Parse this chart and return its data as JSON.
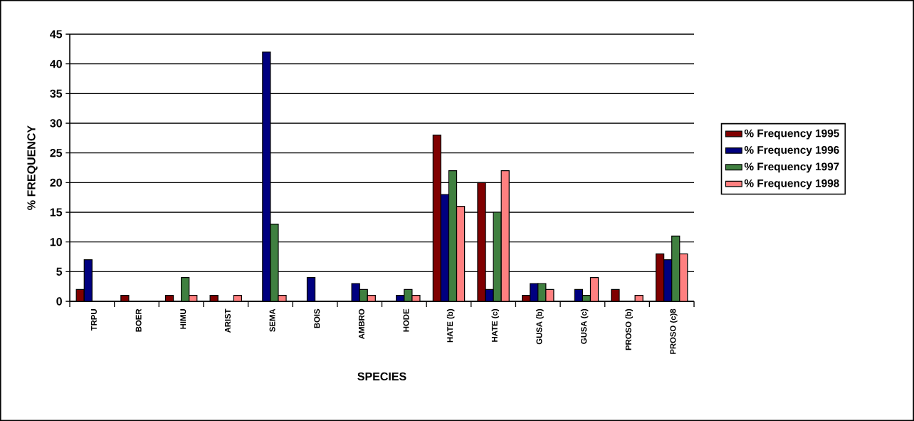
{
  "chart_data": {
    "type": "bar",
    "xlabel": "SPECIES",
    "ylabel": "% FREQUENCY",
    "categories": [
      "TRPU",
      "BOER",
      "HIMU",
      "ARIST",
      "SEMA",
      "BOIS",
      "AMBRO",
      "HODE",
      "HATE (b)",
      "HATE (c)",
      "GUSA (b)",
      "GUSA (c)",
      "PROSO (b)",
      "PROSO (c)8"
    ],
    "series": [
      {
        "name": "% Frequency 1995",
        "color": "#800000",
        "values": [
          2,
          1,
          1,
          1,
          0,
          0,
          0,
          0,
          28,
          20,
          1,
          0,
          2,
          8
        ]
      },
      {
        "name": "% Frequency 1996",
        "color": "#000080",
        "values": [
          7,
          0,
          0,
          0,
          42,
          4,
          3,
          1,
          18,
          2,
          3,
          2,
          0,
          7
        ]
      },
      {
        "name": "% Frequency 1997",
        "color": "#408040",
        "values": [
          0,
          0,
          4,
          0,
          13,
          0,
          2,
          2,
          22,
          15,
          3,
          1,
          0,
          11
        ]
      },
      {
        "name": "% Frequency 1998",
        "color": "#ff8080",
        "values": [
          0,
          0,
          1,
          1,
          1,
          0,
          1,
          1,
          16,
          22,
          2,
          4,
          1,
          8
        ]
      }
    ],
    "ylim": [
      0,
      45
    ],
    "yticks": [
      0,
      5,
      10,
      15,
      20,
      25,
      30,
      35,
      40,
      45
    ],
    "grid": "y",
    "legend": "right"
  }
}
